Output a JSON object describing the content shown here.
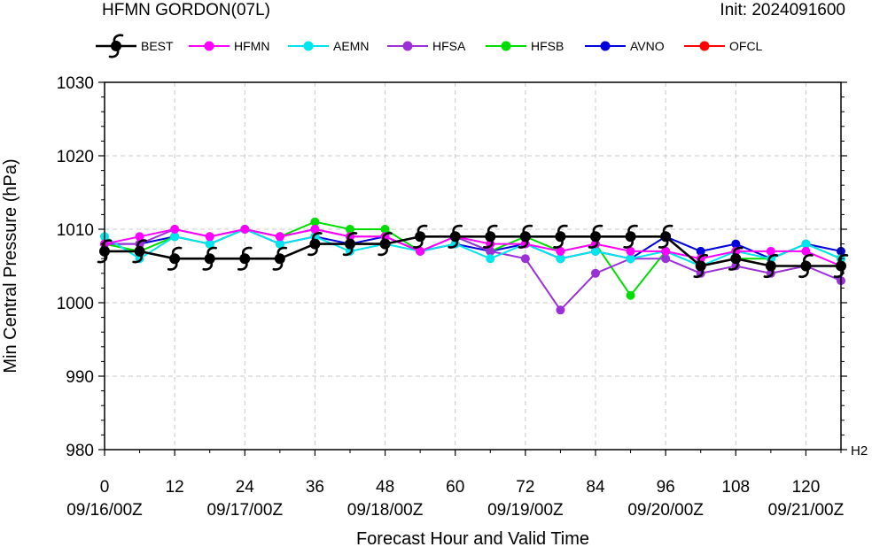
{
  "header": {
    "title": "HFMN GORDON(07L)",
    "init": "Init: 2024091600"
  },
  "colors": {
    "BEST": "#000000",
    "HFMN": "#ff00ff",
    "AEMN": "#00e5ee",
    "HFSA": "#9b30d9",
    "HFSB": "#00dd00",
    "AVNO": "#0000dd",
    "OFCL": "#ff0000",
    "grid": "#c8c8c8"
  },
  "chart_data": {
    "type": "line",
    "xlabel": "Forecast Hour and Valid Time",
    "ylabel": "Min Central Pressure (hPa)",
    "xlim": [
      0,
      126
    ],
    "ylim": [
      980,
      1030
    ],
    "grid": true,
    "legend_position": "top",
    "corner_label": "H2",
    "x_ticks": [
      0,
      12,
      24,
      36,
      48,
      60,
      72,
      84,
      96,
      108,
      120
    ],
    "y_ticks": [
      980,
      990,
      1000,
      1010,
      1020,
      1030
    ],
    "date_labels": [
      {
        "x": 0,
        "label": "09/16/00Z"
      },
      {
        "x": 24,
        "label": "09/17/00Z"
      },
      {
        "x": 48,
        "label": "09/18/00Z"
      },
      {
        "x": 72,
        "label": "09/19/00Z"
      },
      {
        "x": 96,
        "label": "09/20/00Z"
      },
      {
        "x": 120,
        "label": "09/21/00Z"
      }
    ],
    "legend": [
      "BEST",
      "HFMN",
      "AEMN",
      "HFSA",
      "HFSB",
      "AVNO",
      "OFCL"
    ],
    "series": [
      {
        "name": "AVNO",
        "marker": "dot",
        "x": [
          0,
          6,
          12,
          18,
          24,
          30,
          36,
          42,
          48,
          54,
          60,
          66,
          72,
          78,
          84,
          90,
          96,
          102,
          108,
          114,
          120,
          126
        ],
        "y": [
          1008,
          1008,
          1009,
          1008,
          1010,
          1008,
          1009,
          1008,
          1009,
          1007,
          1008,
          1007,
          1008,
          1006,
          1007,
          1006,
          1009,
          1007,
          1008,
          1006,
          1008,
          1007
        ]
      },
      {
        "name": "HFSB",
        "marker": "dot",
        "x": [
          0,
          6,
          12,
          18,
          24,
          30,
          36,
          42,
          48,
          54,
          60,
          66,
          72,
          78,
          84,
          90,
          96,
          102,
          108,
          114,
          120,
          126
        ],
        "y": [
          1008,
          1007,
          1009,
          1008,
          1010,
          1009,
          1011,
          1010,
          1010,
          1007,
          1009,
          1007,
          1009,
          1007,
          1008,
          1001,
          1007,
          1005,
          1006,
          1006,
          1008,
          1006
        ]
      },
      {
        "name": "HFSA",
        "marker": "dot",
        "x": [
          0,
          6,
          12,
          18,
          24,
          30,
          36,
          42,
          48,
          54,
          60,
          66,
          72,
          78,
          84,
          90,
          96,
          102,
          108,
          114,
          120,
          126
        ],
        "y": [
          1008,
          1008,
          1010,
          1009,
          1010,
          1009,
          1010,
          1009,
          1009,
          1007,
          1009,
          1007,
          1006,
          999,
          1004,
          1006,
          1006,
          1004,
          1005,
          1004,
          1005,
          1003
        ]
      },
      {
        "name": "AEMN",
        "marker": "dot",
        "x": [
          0,
          6,
          12,
          18,
          24,
          30,
          36,
          42,
          48,
          54,
          60,
          66,
          72,
          78,
          84,
          90,
          96,
          102,
          108,
          114,
          120,
          126
        ],
        "y": [
          1009,
          1006,
          1009,
          1008,
          1010,
          1008,
          1009,
          1007,
          1008,
          1007,
          1008,
          1006,
          1008,
          1006,
          1007,
          1006,
          1007,
          1005,
          1007,
          1006,
          1008,
          1006
        ]
      },
      {
        "name": "HFMN",
        "marker": "dot",
        "x": [
          0,
          6,
          12,
          18,
          24,
          30,
          36,
          42,
          48,
          54,
          60,
          66,
          72,
          78,
          84,
          90,
          96,
          102,
          108,
          114,
          120,
          126
        ],
        "y": [
          1008,
          1009,
          1010,
          1009,
          1010,
          1009,
          1010,
          1009,
          1009,
          1007,
          1009,
          1008,
          1008,
          1007,
          1008,
          1007,
          1007,
          1006,
          1007,
          1007,
          1007,
          1005
        ]
      },
      {
        "name": "BEST",
        "marker": "hurricane",
        "x": [
          0,
          6,
          12,
          18,
          24,
          30,
          36,
          42,
          48,
          54,
          60,
          66,
          72,
          78,
          84,
          90,
          96,
          102,
          108,
          114,
          120,
          126
        ],
        "y": [
          1007,
          1007,
          1006,
          1006,
          1006,
          1006,
          1008,
          1008,
          1008,
          1009,
          1009,
          1009,
          1009,
          1009,
          1009,
          1009,
          1009,
          1005,
          1006,
          1005,
          1005,
          1005
        ]
      }
    ]
  }
}
